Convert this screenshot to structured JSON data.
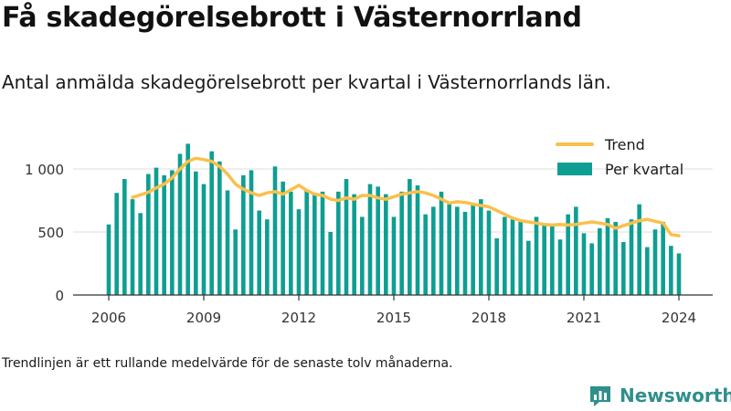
{
  "title": "Få skadegörelsebrott i Västernorrland",
  "subtitle": "Antal anmälda skadegörelsebrott per kvartal i Västernorrlands län.",
  "footnote": "Trendlinjen är ett rullande medelvärde för de senaste tolv månaderna.",
  "brand": {
    "name": "Newsworthy",
    "icon": "newsworthy-logo-icon",
    "color": "#2f8f8c"
  },
  "colors": {
    "bars": "#0e9e92",
    "trend": "#f9c04c",
    "grid": "#dddddd",
    "axis": "#333333"
  },
  "chart_data": {
    "type": "bar",
    "x_ticks": [
      "2006",
      "2009",
      "2012",
      "2015",
      "2018",
      "2021",
      "2024"
    ],
    "y_ticks": [
      "0",
      "500",
      "1 000"
    ],
    "ylim": [
      0,
      1300
    ],
    "grid": "horizontal",
    "legend_position": "top-right",
    "series": [
      {
        "name": "Per kvartal",
        "kind": "bar",
        "x": [
          2006.0,
          2006.25,
          2006.5,
          2006.75,
          2007.0,
          2007.25,
          2007.5,
          2007.75,
          2008.0,
          2008.25,
          2008.5,
          2008.75,
          2009.0,
          2009.25,
          2009.5,
          2009.75,
          2010.0,
          2010.25,
          2010.5,
          2010.75,
          2011.0,
          2011.25,
          2011.5,
          2011.75,
          2012.0,
          2012.25,
          2012.5,
          2012.75,
          2013.0,
          2013.25,
          2013.5,
          2013.75,
          2014.0,
          2014.25,
          2014.5,
          2014.75,
          2015.0,
          2015.25,
          2015.5,
          2015.75,
          2016.0,
          2016.25,
          2016.5,
          2016.75,
          2017.0,
          2017.25,
          2017.5,
          2017.75,
          2018.0,
          2018.25,
          2018.5,
          2018.75,
          2019.0,
          2019.25,
          2019.5,
          2019.75,
          2020.0,
          2020.25,
          2020.5,
          2020.75,
          2021.0,
          2021.25,
          2021.5,
          2021.75,
          2022.0,
          2022.25,
          2022.5,
          2022.75,
          2023.0,
          2023.25,
          2023.5,
          2023.75,
          2024.0
        ],
        "values": [
          560,
          810,
          920,
          760,
          650,
          960,
          1010,
          950,
          990,
          1120,
          1200,
          980,
          880,
          1140,
          1060,
          830,
          520,
          950,
          990,
          670,
          600,
          1020,
          900,
          820,
          680,
          830,
          810,
          820,
          500,
          820,
          920,
          800,
          620,
          880,
          860,
          800,
          620,
          820,
          920,
          870,
          640,
          700,
          820,
          720,
          700,
          660,
          720,
          760,
          670,
          450,
          620,
          600,
          580,
          430,
          620,
          560,
          560,
          440,
          640,
          700,
          490,
          410,
          530,
          610,
          580,
          420,
          600,
          720,
          380,
          520,
          580,
          390,
          330
        ]
      },
      {
        "name": "Trend",
        "kind": "line",
        "x": [
          2006.75,
          2007.0,
          2007.25,
          2007.5,
          2007.75,
          2008.0,
          2008.25,
          2008.5,
          2008.75,
          2009.0,
          2009.25,
          2009.5,
          2009.75,
          2010.0,
          2010.25,
          2010.5,
          2010.75,
          2011.0,
          2011.25,
          2011.5,
          2011.75,
          2012.0,
          2012.25,
          2012.5,
          2012.75,
          2013.0,
          2013.25,
          2013.5,
          2013.75,
          2014.0,
          2014.25,
          2014.5,
          2014.75,
          2015.0,
          2015.25,
          2015.5,
          2015.75,
          2016.0,
          2016.25,
          2016.5,
          2016.75,
          2017.0,
          2017.25,
          2017.5,
          2017.75,
          2018.0,
          2018.25,
          2018.5,
          2018.75,
          2019.0,
          2019.25,
          2019.5,
          2019.75,
          2020.0,
          2020.25,
          2020.5,
          2020.75,
          2021.0,
          2021.25,
          2021.5,
          2021.75,
          2022.0,
          2022.25,
          2022.5,
          2022.75,
          2023.0,
          2023.25,
          2023.5,
          2023.75,
          2024.0
        ],
        "values": [
          775,
          795,
          815,
          850,
          880,
          930,
          1000,
          1060,
          1085,
          1075,
          1060,
          1020,
          960,
          880,
          840,
          810,
          790,
          810,
          820,
          800,
          835,
          870,
          830,
          800,
          790,
          760,
          750,
          770,
          760,
          790,
          790,
          770,
          760,
          780,
          800,
          810,
          820,
          810,
          790,
          760,
          730,
          740,
          735,
          720,
          710,
          700,
          670,
          640,
          610,
          590,
          580,
          570,
          560,
          555,
          560,
          555,
          560,
          570,
          580,
          570,
          560,
          530,
          550,
          570,
          590,
          600,
          585,
          570,
          480,
          470
        ]
      }
    ]
  }
}
